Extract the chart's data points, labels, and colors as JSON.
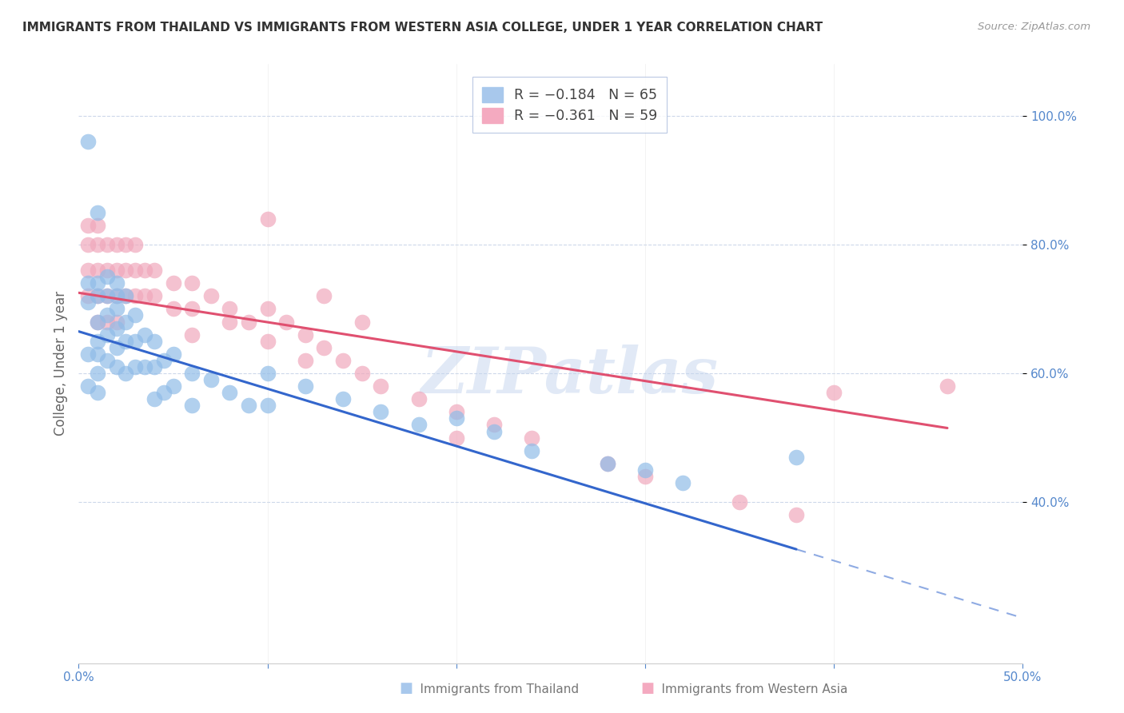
{
  "title": "IMMIGRANTS FROM THAILAND VS IMMIGRANTS FROM WESTERN ASIA COLLEGE, UNDER 1 YEAR CORRELATION CHART",
  "source": "Source: ZipAtlas.com",
  "ylabel": "College, Under 1 year",
  "xlim": [
    0.0,
    0.5
  ],
  "ylim": [
    0.15,
    1.08
  ],
  "background_color": "#ffffff",
  "grid_color": "#c8d4e8",
  "watermark": "ZIPatlas",
  "thailand_color": "#90bce8",
  "western_asia_color": "#f0a8bc",
  "thailand_line_color": "#3366cc",
  "western_asia_line_color": "#e05070",
  "thailand_line_solid_end": 0.38,
  "thailand_line_x0": 0.0,
  "thailand_line_y0": 0.665,
  "thailand_line_x1": 0.5,
  "thailand_line_y1": 0.22,
  "western_asia_line_x0": 0.0,
  "western_asia_line_y0": 0.725,
  "western_asia_line_x1": 0.46,
  "western_asia_line_y1": 0.515,
  "thailand_scatter_x": [
    0.005,
    0.005,
    0.005,
    0.005,
    0.005,
    0.01,
    0.01,
    0.01,
    0.01,
    0.01,
    0.01,
    0.01,
    0.01,
    0.015,
    0.015,
    0.015,
    0.015,
    0.015,
    0.02,
    0.02,
    0.02,
    0.02,
    0.02,
    0.02,
    0.025,
    0.025,
    0.025,
    0.025,
    0.03,
    0.03,
    0.03,
    0.035,
    0.035,
    0.04,
    0.04,
    0.04,
    0.045,
    0.045,
    0.05,
    0.05,
    0.06,
    0.06,
    0.07,
    0.08,
    0.09,
    0.1,
    0.1,
    0.12,
    0.14,
    0.16,
    0.18,
    0.2,
    0.22,
    0.24,
    0.28,
    0.3,
    0.32,
    0.38
  ],
  "thailand_scatter_y": [
    0.96,
    0.74,
    0.71,
    0.63,
    0.58,
    0.85,
    0.74,
    0.72,
    0.68,
    0.65,
    0.63,
    0.6,
    0.57,
    0.75,
    0.72,
    0.69,
    0.66,
    0.62,
    0.74,
    0.72,
    0.7,
    0.67,
    0.64,
    0.61,
    0.72,
    0.68,
    0.65,
    0.6,
    0.69,
    0.65,
    0.61,
    0.66,
    0.61,
    0.65,
    0.61,
    0.56,
    0.62,
    0.57,
    0.63,
    0.58,
    0.6,
    0.55,
    0.59,
    0.57,
    0.55,
    0.6,
    0.55,
    0.58,
    0.56,
    0.54,
    0.52,
    0.53,
    0.51,
    0.48,
    0.46,
    0.45,
    0.43,
    0.47
  ],
  "western_asia_scatter_x": [
    0.005,
    0.005,
    0.005,
    0.005,
    0.01,
    0.01,
    0.01,
    0.01,
    0.01,
    0.015,
    0.015,
    0.015,
    0.015,
    0.02,
    0.02,
    0.02,
    0.02,
    0.025,
    0.025,
    0.025,
    0.03,
    0.03,
    0.03,
    0.035,
    0.035,
    0.04,
    0.04,
    0.05,
    0.05,
    0.06,
    0.06,
    0.07,
    0.08,
    0.09,
    0.1,
    0.1,
    0.11,
    0.12,
    0.12,
    0.13,
    0.14,
    0.15,
    0.16,
    0.18,
    0.2,
    0.22,
    0.24,
    0.28,
    0.3,
    0.35,
    0.38,
    0.46,
    0.1,
    0.13,
    0.08,
    0.15,
    0.2,
    0.06,
    0.4
  ],
  "western_asia_scatter_y": [
    0.83,
    0.8,
    0.76,
    0.72,
    0.83,
    0.8,
    0.76,
    0.72,
    0.68,
    0.8,
    0.76,
    0.72,
    0.68,
    0.8,
    0.76,
    0.72,
    0.68,
    0.8,
    0.76,
    0.72,
    0.8,
    0.76,
    0.72,
    0.76,
    0.72,
    0.76,
    0.72,
    0.74,
    0.7,
    0.74,
    0.7,
    0.72,
    0.7,
    0.68,
    0.7,
    0.65,
    0.68,
    0.66,
    0.62,
    0.64,
    0.62,
    0.6,
    0.58,
    0.56,
    0.54,
    0.52,
    0.5,
    0.46,
    0.44,
    0.4,
    0.38,
    0.58,
    0.84,
    0.72,
    0.68,
    0.68,
    0.5,
    0.66,
    0.57
  ]
}
